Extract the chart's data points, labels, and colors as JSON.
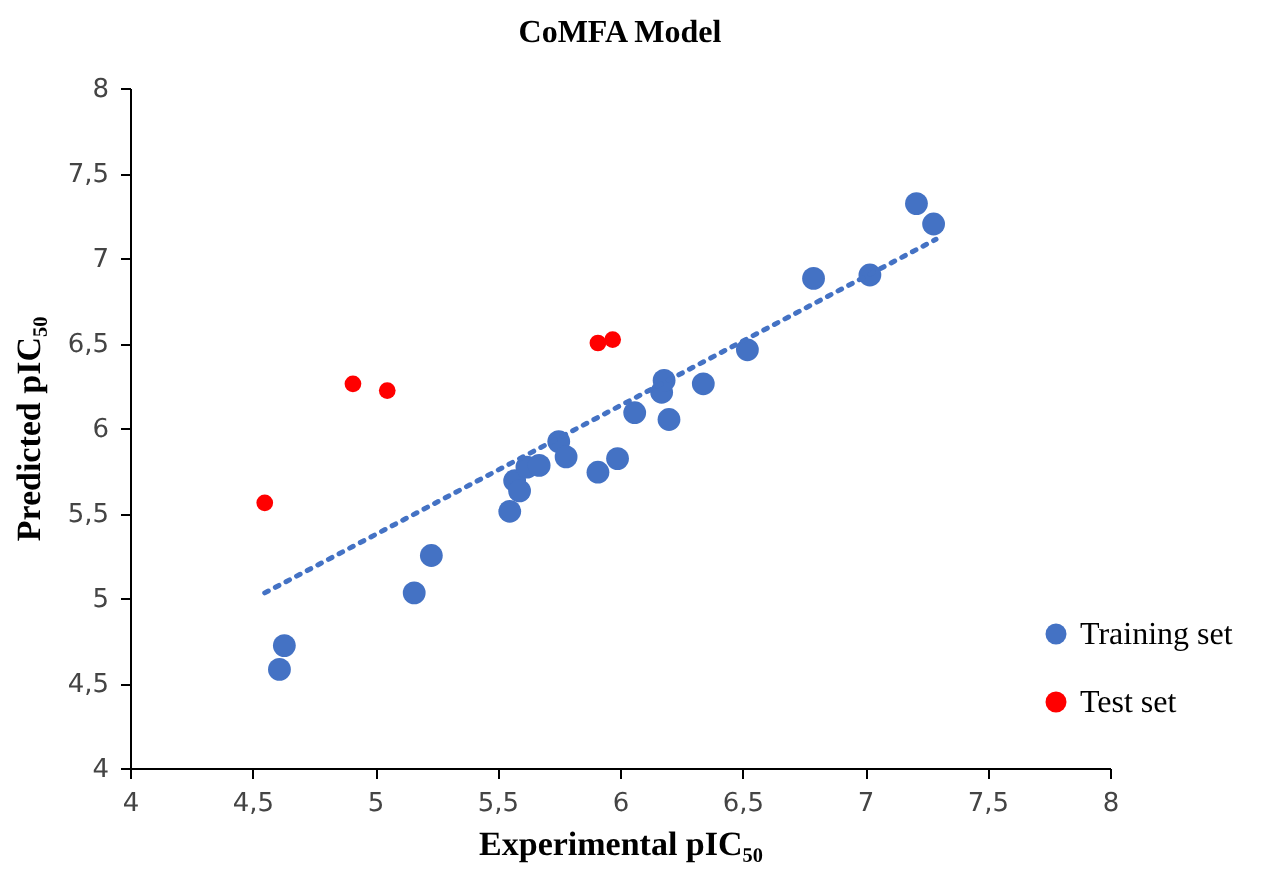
{
  "chart_data": {
    "type": "scatter",
    "title": "CoMFA Model",
    "xlabel": "Experimental pIC₅₀",
    "ylabel": "Predicted  pIC₅₀",
    "xlim": [
      4,
      8
    ],
    "ylim": [
      4,
      8
    ],
    "xticks": [
      4,
      {
        "value": 4.5,
        "label": "4,5"
      },
      5,
      {
        "value": 5.5,
        "label": "5,5"
      },
      6,
      {
        "value": 6.5,
        "label": "6,5"
      },
      7,
      {
        "value": 7.5,
        "label": "7,5"
      },
      8
    ],
    "yticks": [
      4,
      {
        "value": 4.5,
        "label": "4,5"
      },
      5,
      {
        "value": 5.5,
        "label": "5,5"
      },
      6,
      {
        "value": 6.5,
        "label": "6,5"
      },
      7,
      {
        "value": 7.5,
        "label": "7,5"
      },
      8
    ],
    "grid": false,
    "legend": "right",
    "series": [
      {
        "name": "Training set",
        "color": "#4472c4",
        "marker": "circle",
        "x": [
          4.61,
          4.63,
          5.16,
          5.23,
          5.55,
          5.57,
          5.59,
          5.62,
          5.67,
          5.75,
          5.78,
          5.91,
          5.99,
          6.06,
          6.17,
          6.18,
          6.2,
          6.34,
          6.52,
          6.79,
          7.02,
          7.21,
          7.28
        ],
        "values": [
          4.58,
          4.72,
          5.03,
          5.25,
          5.51,
          5.69,
          5.63,
          5.77,
          5.78,
          5.92,
          5.83,
          5.74,
          5.82,
          6.09,
          6.21,
          6.28,
          6.05,
          6.26,
          6.46,
          6.88,
          6.9,
          7.32,
          7.2
        ]
      },
      {
        "name": "Test set",
        "color": "#ff0000",
        "marker": "circle",
        "x": [
          4.55,
          4.91,
          5.05,
          5.91,
          5.97
        ],
        "values": [
          5.56,
          6.26,
          6.22,
          6.5,
          6.52
        ]
      },
      {
        "type": "line",
        "line_style": "dotted",
        "color": "#4472c4",
        "x": [
          4.55,
          7.29
        ],
        "values": [
          5.03,
          7.11
        ]
      }
    ]
  }
}
